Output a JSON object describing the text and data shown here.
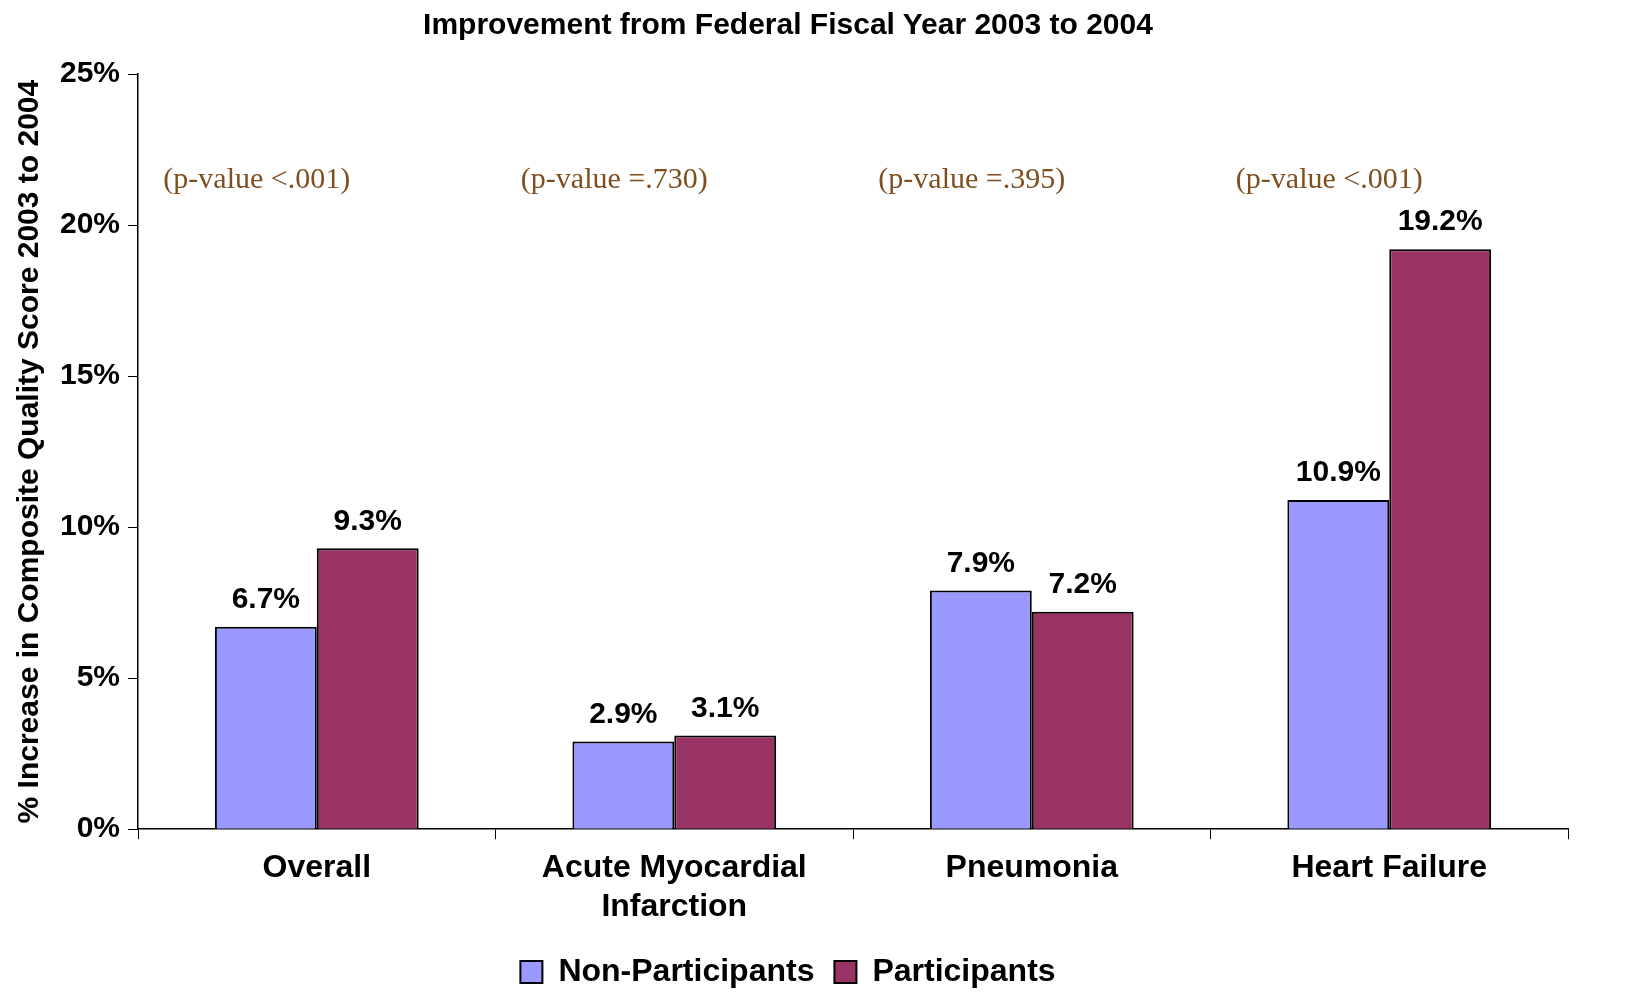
{
  "chart_data": {
    "type": "bar",
    "title": "Improvement from Federal Fiscal Year 2003 to 2004",
    "ylabel": "% Increase in Composite Quality Score 2003 to 2004",
    "categories": [
      "Overall",
      "Acute Myocardial Infarction",
      "Pneumonia",
      "Heart Failure"
    ],
    "series": [
      {
        "name": "Non-Participants",
        "color": "#9999ff",
        "values": [
          6.7,
          2.9,
          7.9,
          10.9
        ],
        "value_labels": [
          "6.7%",
          "2.9%",
          "7.9%",
          "10.9%"
        ]
      },
      {
        "name": "Participants",
        "color": "#993366",
        "values": [
          9.3,
          3.1,
          7.2,
          19.2
        ],
        "value_labels": [
          "9.3%",
          "3.1%",
          "7.2%",
          "19.2%"
        ]
      }
    ],
    "ylim": [
      0,
      25
    ],
    "yticks": [
      {
        "value": 0,
        "label": "0%"
      },
      {
        "value": 5,
        "label": "5%"
      },
      {
        "value": 10,
        "label": "10%"
      },
      {
        "value": 15,
        "label": "15%"
      },
      {
        "value": 20,
        "label": "20%"
      },
      {
        "value": 25,
        "label": "25%"
      }
    ],
    "annotations": [
      "(p-value <.001)",
      "(p-value =.730)",
      "(p-value =.395)",
      "(p-value <.001)"
    ],
    "grid": false,
    "legend": "bottom"
  }
}
